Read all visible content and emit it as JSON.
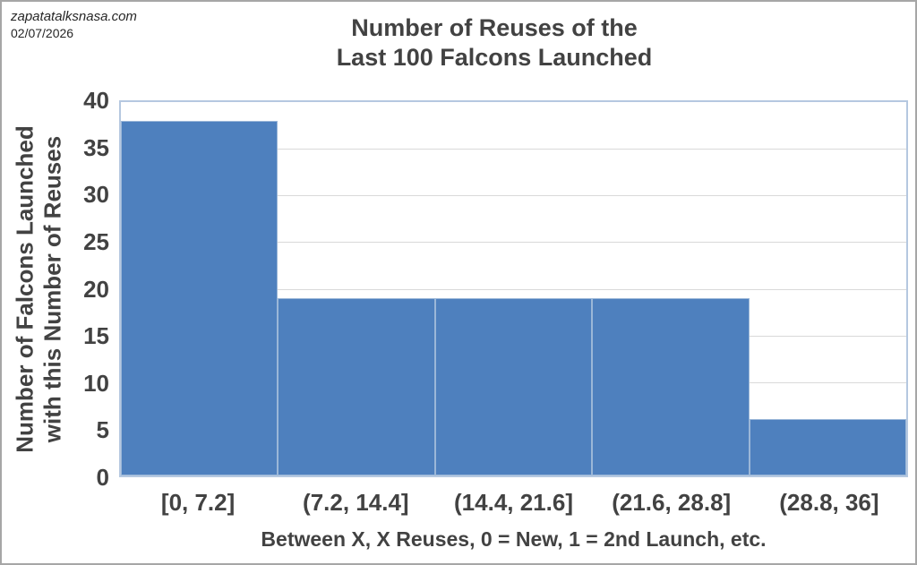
{
  "watermark": {
    "site": "zapatatalksnasa.com",
    "date": "02/07/2026"
  },
  "chart_data": {
    "type": "bar",
    "subtype": "histogram",
    "title_lines": [
      "Number of Reuses of the",
      "Last 100 Falcons Launched"
    ],
    "categories": [
      "[0, 7.2]",
      "(7.2, 14.4]",
      "(14.4, 21.6]",
      "(21.6, 28.8]",
      "(28.8, 36]"
    ],
    "values": [
      38,
      19,
      19,
      19,
      6
    ],
    "xlabel": "Between X, X Reuses, 0 = New, 1 = 2nd Launch, etc.",
    "ylabel_lines": [
      "Number of Falcons Launched",
      "with this Number of Reuses"
    ],
    "ylim": [
      0,
      40
    ],
    "ytick_step": 5,
    "yticks": [
      0,
      5,
      10,
      15,
      20,
      25,
      30,
      35,
      40
    ],
    "grid": "horizontal",
    "legend": "none",
    "bar_gap": 0,
    "colors": {
      "bar_fill": "#4E80BE",
      "bar_border": "#9BB7D8",
      "plot_border": "#B5C8E0",
      "gridline": "#D9D9D9",
      "text": "#424242",
      "outer_border": "#A6A6A6"
    }
  }
}
